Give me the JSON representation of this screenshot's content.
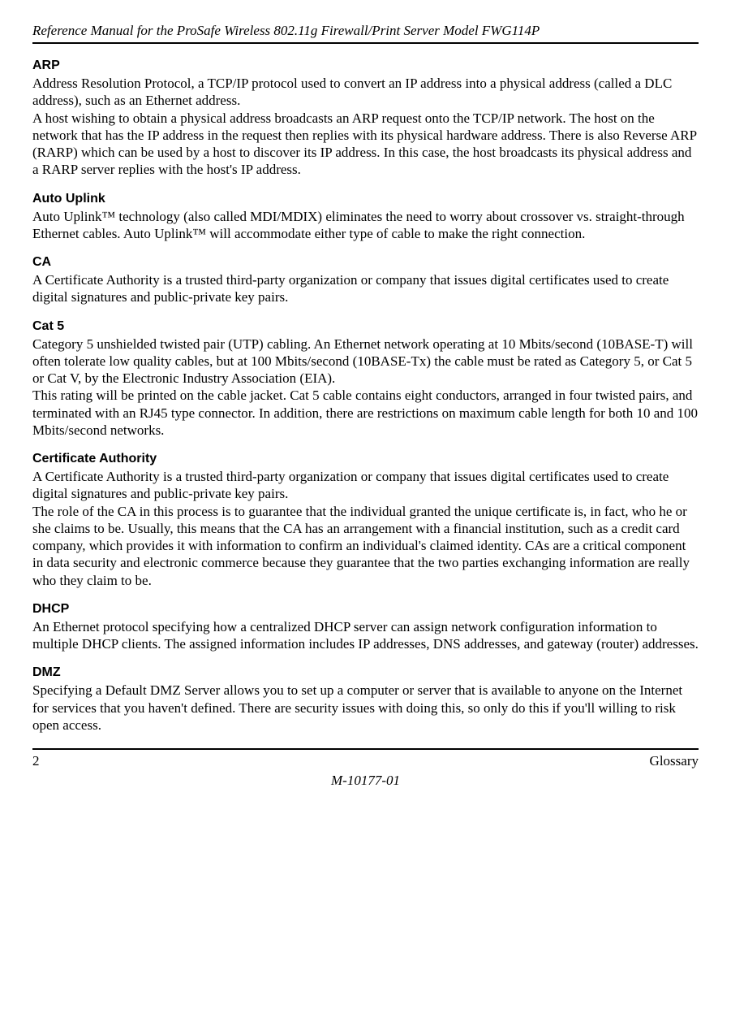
{
  "header": {
    "title": "Reference Manual for the ProSafe Wireless 802.11g  Firewall/Print Server Model FWG114P"
  },
  "entries": [
    {
      "term": "ARP",
      "definition": "Address Resolution Protocol, a TCP/IP protocol used to convert an IP address into a physical address (called a DLC address), such as an Ethernet address.\nA host wishing to obtain a physical address broadcasts an ARP request onto the TCP/IP network. The host on the network that has the IP address in the request then replies with its physical hardware address. There is also Reverse ARP (RARP) which can be used by a host to discover its IP address. In this case, the host broadcasts its physical address and a RARP server replies with the host's IP address."
    },
    {
      "term": "Auto Uplink",
      "definition": "Auto Uplink™ technology (also called MDI/MDIX) eliminates the need to worry about crossover vs. straight-through Ethernet cables. Auto Uplink™ will accommodate either type of cable to make the right connection."
    },
    {
      "term": "CA",
      "definition": "A Certificate Authority is a trusted third-party organization or company that issues digital certificates used to create digital signatures and public-private key pairs."
    },
    {
      "term": "Cat 5",
      "definition": "Category 5 unshielded twisted pair (UTP) cabling. An Ethernet network operating at 10 Mbits/second (10BASE-T) will often tolerate low quality cables, but at 100 Mbits/second (10BASE-Tx) the cable must be rated as Category 5, or Cat 5 or Cat V, by the Electronic Industry Association (EIA).\nThis rating will be printed on the cable jacket. Cat 5 cable contains eight conductors, arranged in four twisted pairs, and terminated with an RJ45 type connector. In addition, there are restrictions on maximum cable length for both 10 and 100 Mbits/second networks."
    },
    {
      "term": "Certificate Authority",
      "definition": "A Certificate Authority is a trusted third-party organization or company that issues digital certificates used to create digital signatures and public-private key pairs.\nThe role of the CA in this process is to guarantee that the individual granted the unique certificate is, in fact, who he or she claims to be. Usually, this means that the CA has an arrangement with a financial institution, such as a credit card company, which provides it with information to confirm an individual's claimed identity. CAs are a critical component in data security and electronic commerce because they guarantee that the two parties exchanging information are really who they claim to be."
    },
    {
      "term": "DHCP",
      "definition": "An Ethernet protocol specifying how a centralized DHCP server can assign network configuration information to multiple DHCP clients. The assigned information includes IP addresses, DNS addresses, and gateway (router) addresses."
    },
    {
      "term": "DMZ",
      "definition": "Specifying a Default DMZ Server allows you to set up a computer or server that is available to anyone on the Internet for services that you haven't defined. There are security issues with doing this, so only do this if you'll willing to risk open access."
    }
  ],
  "footer": {
    "page_number": "2",
    "section": "Glossary",
    "doc_id": "M-10177-01"
  }
}
